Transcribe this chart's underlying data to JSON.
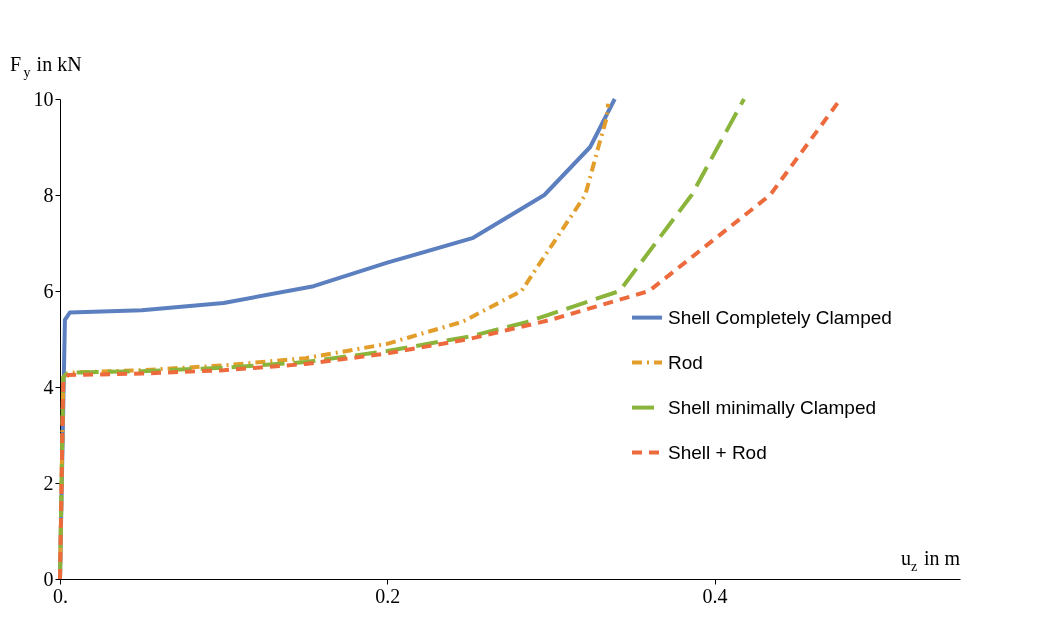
{
  "chart_data": {
    "type": "line",
    "xlabel": "u$_{z}$ in m",
    "ylabel": "F$_{y}$ in kN",
    "xlim": [
      0,
      0.55
    ],
    "xticks": [
      {
        "value": 0,
        "label": "0."
      },
      0.2,
      0.4
    ],
    "ylim": [
      0,
      10
    ],
    "yticks": [
      0,
      2,
      4,
      6,
      8,
      10
    ],
    "grid": false,
    "legend": "right",
    "series": [
      {
        "name": "Shell Completely Clamped",
        "color": "#5b7fbf",
        "line_style": "solid",
        "x": [
          0,
          0.003,
          0.006,
          0.05,
          0.1,
          0.155,
          0.2,
          0.252,
          0.296,
          0.324,
          0.339
        ],
        "values": [
          0,
          5.4,
          5.55,
          5.6,
          5.75,
          6.1,
          6.59,
          7.1,
          8,
          9,
          10
        ]
      },
      {
        "name": "Rod",
        "color": "#e29d2a",
        "line_style": "dashdot",
        "x": [
          0,
          0.002,
          0.005,
          0.05,
          0.1,
          0.15,
          0.2,
          0.246,
          0.282,
          0.321,
          0.329,
          0.334,
          0.335
        ],
        "values": [
          0,
          4.2,
          4.3,
          4.35,
          4.45,
          4.6,
          4.9,
          5.36,
          6,
          8,
          9,
          9.6,
          9.9
        ]
      },
      {
        "name": "Shell minimally Clamped",
        "color": "#8ab53a",
        "line_style": "longdash",
        "x": [
          0,
          0.002,
          0.005,
          0.05,
          0.1,
          0.15,
          0.2,
          0.25,
          0.285,
          0.342,
          0.386,
          0.418
        ],
        "values": [
          0,
          4.2,
          4.3,
          4.33,
          4.4,
          4.52,
          4.75,
          5.05,
          5.35,
          6,
          8,
          10
        ]
      },
      {
        "name": "Shell + Rod",
        "color": "#ec6a3c",
        "line_style": "dashed",
        "x": [
          0,
          0.002,
          0.005,
          0.05,
          0.1,
          0.15,
          0.2,
          0.25,
          0.3,
          0.36,
          0.434,
          0.477
        ],
        "values": [
          0,
          4.15,
          4.25,
          4.28,
          4.35,
          4.48,
          4.7,
          5.0,
          5.4,
          6,
          8,
          10
        ]
      }
    ]
  }
}
